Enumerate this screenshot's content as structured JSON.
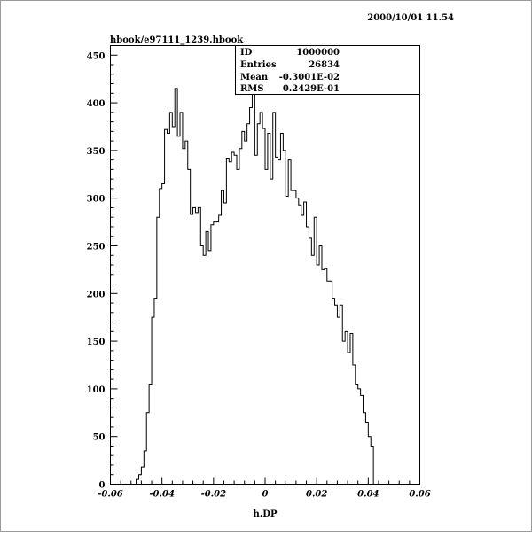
{
  "header": {
    "timestamp": "2000/10/01  11.54",
    "file_title": "hbook/e97111_1239.hbook"
  },
  "stats_box": {
    "rows": [
      {
        "label": "ID",
        "value": "1000000"
      },
      {
        "label": "Entries",
        "value": "26834"
      },
      {
        "label": "Mean",
        "value": "-0.3001E-02"
      },
      {
        "label": "RMS",
        "value": "0.2429E-01"
      }
    ]
  },
  "chart_data": {
    "type": "histogram",
    "xlabel": "h.DP",
    "ylabel": "",
    "xlim": [
      -0.06,
      0.06
    ],
    "ylim": [
      0,
      460
    ],
    "x_ticks": [
      -0.06,
      -0.04,
      -0.02,
      0,
      0.02,
      0.04,
      0.06
    ],
    "x_tick_labels": [
      "-0.06",
      "-0.04",
      "-0.02",
      "0",
      "0.02",
      "0.04",
      "0.06"
    ],
    "y_ticks": [
      0,
      50,
      100,
      150,
      200,
      250,
      300,
      350,
      400,
      450
    ],
    "y_tick_labels": [
      "0",
      "50",
      "100",
      "150",
      "200",
      "250",
      "300",
      "350",
      "400",
      "450"
    ],
    "bin_start": -0.05,
    "bin_width": 0.001,
    "values": [
      5,
      10,
      18,
      35,
      75,
      105,
      175,
      195,
      280,
      310,
      315,
      372,
      368,
      390,
      375,
      415,
      365,
      390,
      352,
      360,
      330,
      283,
      290,
      285,
      290,
      250,
      240,
      265,
      245,
      272,
      275,
      275,
      282,
      308,
      295,
      342,
      338,
      348,
      345,
      330,
      352,
      370,
      360,
      378,
      395,
      410,
      345,
      378,
      390,
      373,
      330,
      368,
      320,
      390,
      343,
      340,
      368,
      350,
      302,
      340,
      308,
      308,
      300,
      293,
      282,
      296,
      270,
      258,
      240,
      280,
      230,
      250,
      225,
      226,
      213,
      213,
      195,
      188,
      175,
      188,
      150,
      160,
      138,
      158,
      125,
      105,
      100,
      93,
      75,
      65,
      50,
      40,
      0
    ],
    "grid": false
  }
}
